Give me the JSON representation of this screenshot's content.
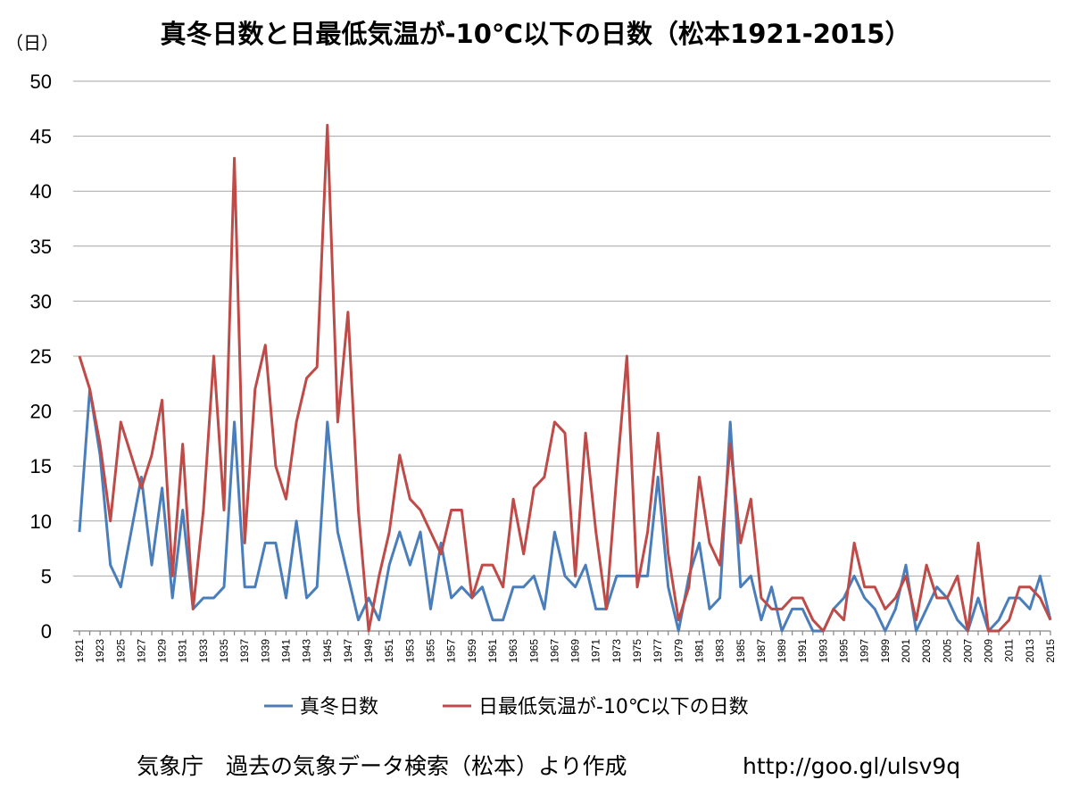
{
  "chart_data": {
    "type": "line",
    "title": "真冬日数と日最低気温が-10℃以下の日数（松本1921-2015）",
    "ylabel": "（日）",
    "xlabel": "",
    "ylim": [
      0,
      50
    ],
    "yticks": [
      0,
      5,
      10,
      15,
      20,
      25,
      30,
      35,
      40,
      45,
      50
    ],
    "x": [
      1921,
      1922,
      1923,
      1924,
      1925,
      1926,
      1927,
      1928,
      1929,
      1930,
      1931,
      1932,
      1933,
      1934,
      1935,
      1936,
      1937,
      1938,
      1939,
      1940,
      1941,
      1942,
      1943,
      1944,
      1945,
      1946,
      1947,
      1948,
      1949,
      1950,
      1951,
      1952,
      1953,
      1954,
      1955,
      1956,
      1957,
      1958,
      1959,
      1960,
      1961,
      1962,
      1963,
      1964,
      1965,
      1966,
      1967,
      1968,
      1969,
      1970,
      1971,
      1972,
      1973,
      1974,
      1975,
      1976,
      1977,
      1978,
      1979,
      1980,
      1981,
      1982,
      1983,
      1984,
      1985,
      1986,
      1987,
      1988,
      1989,
      1990,
      1991,
      1992,
      1993,
      1994,
      1995,
      1996,
      1997,
      1998,
      1999,
      2000,
      2001,
      2002,
      2003,
      2004,
      2005,
      2006,
      2007,
      2008,
      2009,
      2010,
      2011,
      2012,
      2013,
      2014,
      2015
    ],
    "xtick_labels": [
      "1921",
      "1923",
      "1925",
      "1927",
      "1929",
      "1931",
      "1933",
      "1935",
      "1937",
      "1939",
      "1941",
      "1943",
      "1945",
      "1947",
      "1949",
      "1951",
      "1953",
      "1955",
      "1957",
      "1959",
      "1961",
      "1963",
      "1965",
      "1967",
      "1969",
      "1971",
      "1973",
      "1975",
      "1977",
      "1979",
      "1981",
      "1983",
      "1985",
      "1987",
      "1989",
      "1991",
      "1993",
      "1995",
      "1997",
      "1999",
      "2001",
      "2003",
      "2005",
      "2007",
      "2009",
      "2011",
      "2013",
      "2015"
    ],
    "series": [
      {
        "name": "真冬日数",
        "color": "#4a7ebb",
        "values": [
          9,
          22,
          16,
          6,
          4,
          9,
          14,
          6,
          13,
          3,
          11,
          2,
          3,
          3,
          4,
          19,
          4,
          4,
          8,
          8,
          3,
          10,
          3,
          4,
          19,
          9,
          5,
          1,
          3,
          1,
          6,
          9,
          6,
          9,
          2,
          8,
          3,
          4,
          3,
          4,
          1,
          1,
          4,
          4,
          5,
          2,
          9,
          5,
          4,
          6,
          2,
          2,
          5,
          5,
          5,
          5,
          14,
          4,
          0,
          5,
          8,
          2,
          3,
          19,
          4,
          5,
          1,
          4,
          0,
          2,
          2,
          0,
          0,
          2,
          3,
          5,
          3,
          2,
          0,
          2,
          6,
          0,
          2,
          4,
          3,
          1,
          0,
          3,
          0,
          1,
          3,
          3,
          2,
          5,
          1
        ]
      },
      {
        "name": "日最低気温が-10℃以下の日数",
        "color": "#be4b48",
        "values": [
          25,
          22,
          17,
          10,
          19,
          16,
          13,
          16,
          21,
          5,
          17,
          2,
          11,
          25,
          11,
          43,
          8,
          22,
          26,
          15,
          12,
          19,
          23,
          24,
          46,
          19,
          29,
          11,
          0,
          5,
          9,
          16,
          12,
          11,
          9,
          7,
          11,
          11,
          3,
          6,
          6,
          4,
          12,
          7,
          13,
          14,
          19,
          18,
          5,
          18,
          9,
          2,
          14,
          25,
          4,
          9,
          18,
          7,
          1,
          4,
          14,
          8,
          6,
          17,
          8,
          12,
          3,
          2,
          2,
          3,
          3,
          1,
          0,
          2,
          1,
          8,
          4,
          4,
          2,
          3,
          5,
          1,
          6,
          3,
          3,
          5,
          0,
          8,
          0,
          0,
          1,
          4,
          4,
          3,
          1
        ]
      }
    ],
    "legend_position": "bottom",
    "grid": "horizontal"
  },
  "source_text": "気象庁　過去の気象データ検索（松本）より作成",
  "url_text": "http://goo.gl/ulsv9q"
}
